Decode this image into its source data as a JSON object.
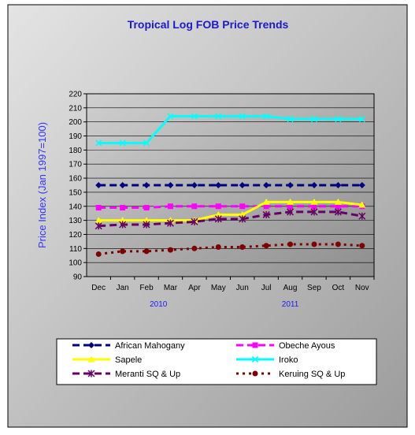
{
  "chart_data": {
    "type": "line",
    "title": "Tropical Log FOB Price Trends",
    "ylabel": "Price Index (Jan 1997=100)",
    "xlabel": "",
    "ylim": [
      90,
      220
    ],
    "ystep": 10,
    "grid": true,
    "legend_position": "bottom",
    "categories": [
      "Dec",
      "Jan",
      "Feb",
      "Mar",
      "Apr",
      "May",
      "Jun",
      "Jul",
      "Aug",
      "Sep",
      "Oct",
      "Nov"
    ],
    "year_labels": [
      {
        "label": "2010",
        "at_index": 2.5
      },
      {
        "label": "2011",
        "at_index": 8
      }
    ],
    "series": [
      {
        "name": "African Mahogany",
        "color": "#000080",
        "marker": "diamond",
        "dash": "dash",
        "values": [
          155,
          155,
          155,
          155,
          155,
          155,
          155,
          155,
          155,
          155,
          155,
          155
        ]
      },
      {
        "name": "Obeche Ayous",
        "color": "#ff00ff",
        "marker": "square",
        "dash": "dash",
        "values": [
          139,
          139,
          139,
          140,
          140,
          140,
          140,
          140,
          140,
          140,
          140,
          140
        ]
      },
      {
        "name": "Sapele",
        "color": "#ffff00",
        "marker": "triangle",
        "dash": "solid",
        "values": [
          130,
          130,
          130,
          130,
          130,
          134,
          134,
          143,
          143,
          143,
          143,
          141
        ]
      },
      {
        "name": "Iroko",
        "color": "#00ffff",
        "marker": "x",
        "dash": "solid",
        "values": [
          185,
          185,
          185,
          204,
          204,
          204,
          204,
          204,
          202,
          202,
          202,
          202
        ]
      },
      {
        "name": "Meranti SQ & Up",
        "color": "#660066",
        "marker": "star",
        "dash": "dash",
        "values": [
          126,
          127,
          127,
          128,
          129,
          131,
          131,
          134,
          136,
          136,
          136,
          133
        ]
      },
      {
        "name": "Keruing SQ & Up",
        "color": "#800000",
        "marker": "circle",
        "dash": "dot",
        "values": [
          106,
          108,
          108,
          109,
          110,
          111,
          111,
          112,
          113,
          113,
          113,
          112
        ]
      }
    ]
  }
}
